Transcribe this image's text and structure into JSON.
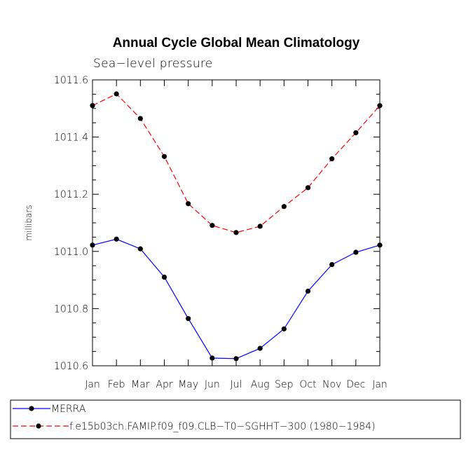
{
  "chart_data": {
    "type": "line",
    "title": "Annual Cycle Global Mean Climatology",
    "subtitle": "Sea−level pressure",
    "xlabel": "",
    "ylabel": "millibars",
    "ylim": [
      1010.6,
      1011.6
    ],
    "yticks": [
      "1010.6",
      "1010.8",
      "1011.0",
      "1011.2",
      "1011.4",
      "1011.6"
    ],
    "ytick_values": [
      1010.6,
      1010.8,
      1011.0,
      1011.2,
      1011.4,
      1011.6
    ],
    "categories": [
      "Jan",
      "Feb",
      "Mar",
      "Apr",
      "May",
      "Jun",
      "Jul",
      "Aug",
      "Sep",
      "Oct",
      "Nov",
      "Dec",
      "Jan"
    ],
    "series": [
      {
        "name": "MERRA",
        "color": "#0000ff",
        "dash": "solid",
        "values": [
          1011.022,
          1011.043,
          1011.009,
          1010.91,
          1010.765,
          1010.627,
          1010.625,
          1010.661,
          1010.729,
          1010.861,
          1010.954,
          1010.997,
          1011.022
        ]
      },
      {
        "name": "f.e15b03ch.FAMIP.f09_f09.CLB−T0−SGHHT−300 (1980−1984)",
        "color": "#ff0000",
        "dash": "dashed",
        "values": [
          1011.51,
          1011.551,
          1011.465,
          1011.332,
          1011.167,
          1011.091,
          1011.066,
          1011.088,
          1011.157,
          1011.223,
          1011.324,
          1011.415,
          1011.51
        ]
      }
    ],
    "legend_position": "bottom-left"
  }
}
